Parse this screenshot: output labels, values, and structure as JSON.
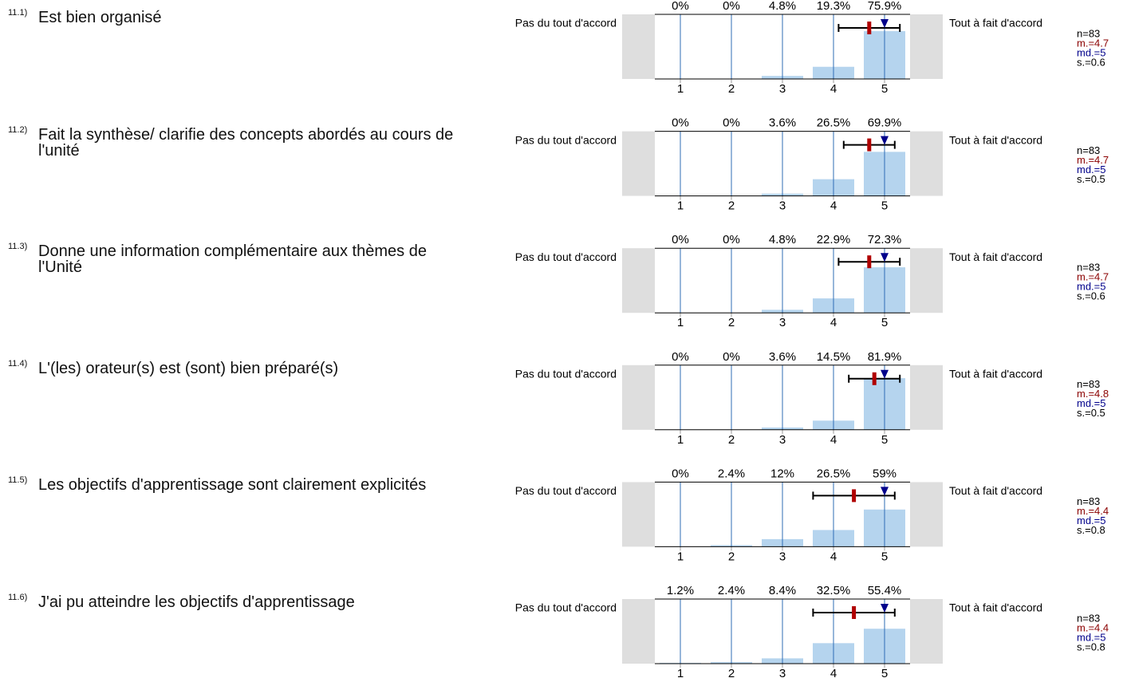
{
  "left_label": "Pas du tout d'accord",
  "right_label": "Tout à fait d'accord",
  "scale": [
    1,
    2,
    3,
    4,
    5
  ],
  "items": [
    {
      "number": "11.1)",
      "question": "Est bien organisé",
      "percents": [
        0,
        0,
        4.8,
        19.3,
        75.9
      ],
      "percent_labels": [
        "0%",
        "0%",
        "4.8%",
        "19.3%",
        "75.9%"
      ],
      "n": {
        "value": 83,
        "label": "n=83"
      },
      "mean": {
        "value": 4.7,
        "label": "m.=4.7"
      },
      "median": {
        "value": 5,
        "label": "md.=5"
      },
      "std": {
        "value": 0.6,
        "label": "s.=0.6"
      }
    },
    {
      "number": "11.2)",
      "question": "Fait la synthèse/ clarifie des concepts abordés au cours de l'unité",
      "percents": [
        0,
        0,
        3.6,
        26.5,
        69.9
      ],
      "percent_labels": [
        "0%",
        "0%",
        "3.6%",
        "26.5%",
        "69.9%"
      ],
      "n": {
        "value": 83,
        "label": "n=83"
      },
      "mean": {
        "value": 4.7,
        "label": "m.=4.7"
      },
      "median": {
        "value": 5,
        "label": "md.=5"
      },
      "std": {
        "value": 0.5,
        "label": "s.=0.5"
      }
    },
    {
      "number": "11.3)",
      "question": "Donne une information complémentaire aux thèmes de l'Unité",
      "percents": [
        0,
        0,
        4.8,
        22.9,
        72.3
      ],
      "percent_labels": [
        "0%",
        "0%",
        "4.8%",
        "22.9%",
        "72.3%"
      ],
      "n": {
        "value": 83,
        "label": "n=83"
      },
      "mean": {
        "value": 4.7,
        "label": "m.=4.7"
      },
      "median": {
        "value": 5,
        "label": "md.=5"
      },
      "std": {
        "value": 0.6,
        "label": "s.=0.6"
      }
    },
    {
      "number": "11.4)",
      "question": "L'(les) orateur(s) est (sont) bien préparé(s)",
      "percents": [
        0,
        0,
        3.6,
        14.5,
        81.9
      ],
      "percent_labels": [
        "0%",
        "0%",
        "3.6%",
        "14.5%",
        "81.9%"
      ],
      "n": {
        "value": 83,
        "label": "n=83"
      },
      "mean": {
        "value": 4.8,
        "label": "m.=4.8"
      },
      "median": {
        "value": 5,
        "label": "md.=5"
      },
      "std": {
        "value": 0.5,
        "label": "s.=0.5"
      }
    },
    {
      "number": "11.5)",
      "question": "Les objectifs d'apprentissage sont clairement explicités",
      "percents": [
        0,
        2.4,
        12,
        26.5,
        59
      ],
      "percent_labels": [
        "0%",
        "2.4%",
        "12%",
        "26.5%",
        "59%"
      ],
      "n": {
        "value": 83,
        "label": "n=83"
      },
      "mean": {
        "value": 4.4,
        "label": "m.=4.4"
      },
      "median": {
        "value": 5,
        "label": "md.=5"
      },
      "std": {
        "value": 0.8,
        "label": "s.=0.8"
      }
    },
    {
      "number": "11.6)",
      "question": "J'ai pu atteindre les objectifs d'apprentissage",
      "percents": [
        1.2,
        2.4,
        8.4,
        32.5,
        55.4
      ],
      "percent_labels": [
        "1.2%",
        "2.4%",
        "8.4%",
        "32.5%",
        "55.4%"
      ],
      "n": {
        "value": 83,
        "label": "n=83"
      },
      "mean": {
        "value": 4.4,
        "label": "m.=4.4"
      },
      "median": {
        "value": 5,
        "label": "md.=5"
      },
      "std": {
        "value": 0.8,
        "label": "s.=0.8"
      }
    }
  ]
}
